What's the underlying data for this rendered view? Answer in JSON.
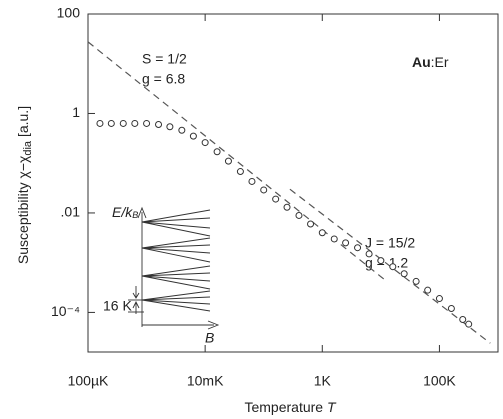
{
  "chart_data": {
    "type": "scatter",
    "xlabel": "Temperature",
    "xlabel_symbol": "T",
    "ylabel": "Susceptibility  χ−χ",
    "ylabel_sub": "dia",
    "ylabel_end": " [a.u.]",
    "log_x": true,
    "log_y": true,
    "xlim": [
      0.0001,
      1000
    ],
    "ylim": [
      1.6e-05,
      100
    ],
    "xticks": [
      {
        "value": 0.0001,
        "label": "100µK"
      },
      {
        "value": 0.01,
        "label": "10mK"
      },
      {
        "value": 1,
        "label": "1K"
      },
      {
        "value": 100,
        "label": "100K"
      }
    ],
    "yticks": [
      100,
      1,
      {
        "value": 0.01,
        "label": ".01"
      },
      {
        "value": 0.0001,
        "label": "10⁻⁴"
      }
    ],
    "marker": "open-circle",
    "color": "#333333",
    "x": [
      0.00016,
      0.00025,
      0.0004,
      0.00063,
      0.001,
      0.0016,
      0.0025,
      0.004,
      0.0063,
      0.01,
      0.016,
      0.025,
      0.04,
      0.063,
      0.1,
      0.16,
      0.25,
      0.4,
      0.63,
      1,
      1.6,
      2.5,
      4,
      6.3,
      10,
      16,
      25,
      40,
      63,
      100,
      160,
      250,
      316
    ],
    "values": [
      0.63,
      0.63,
      0.63,
      0.63,
      0.63,
      0.6,
      0.54,
      0.46,
      0.35,
      0.26,
      0.17,
      0.11,
      0.068,
      0.043,
      0.029,
      0.019,
      0.013,
      0.0089,
      0.006,
      0.004,
      0.003,
      0.0025,
      0.002,
      0.0015,
      0.0011,
      0.00083,
      0.0006,
      0.00042,
      0.00028,
      0.00019,
      0.00012,
      7.2e-05,
      5.8e-05
    ],
    "curves": [
      {
        "x": [
          0.0001,
          12
        ],
        "y": [
          27.5,
          0.00044
        ],
        "color": "#555555",
        "dash": true
      },
      {
        "x": [
          0.28,
          740
        ],
        "y": [
          0.03,
          2.4e-05
        ],
        "color": "#555555",
        "dash": true
      }
    ],
    "annotations": [
      "S = 1/2",
      "g = 6.8",
      "J = 15/2",
      "g = 1.2"
    ],
    "sample": {
      "element": "Au",
      "rest": ":Er"
    },
    "inset": {
      "energy": "E/k",
      "energy_sub": "B",
      "gap": "16 K",
      "field": "B"
    }
  }
}
